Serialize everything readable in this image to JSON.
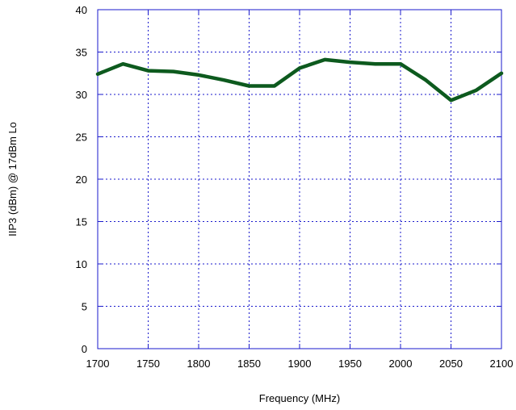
{
  "chart_data": {
    "type": "line",
    "xlabel": "Frequency (MHz)",
    "ylabel": "IIP3 (dBm) @ 17dBm Lo",
    "xlim": [
      1700,
      2100
    ],
    "ylim": [
      0,
      40
    ],
    "xticks": [
      1700,
      1750,
      1800,
      1850,
      1900,
      1950,
      2000,
      2050,
      2100
    ],
    "yticks": [
      0,
      5,
      10,
      15,
      20,
      25,
      30,
      35,
      40
    ],
    "grid": true,
    "series": [
      {
        "color": "#0d5a1e",
        "x": [
          1700,
          1725,
          1750,
          1775,
          1800,
          1825,
          1850,
          1875,
          1900,
          1925,
          1950,
          1975,
          2000,
          2025,
          2050,
          2075,
          2100
        ],
        "y": [
          32.4,
          33.6,
          32.8,
          32.7,
          32.3,
          31.7,
          31.0,
          31.0,
          33.1,
          34.1,
          33.8,
          33.6,
          33.6,
          31.7,
          29.3,
          30.5,
          32.5
        ]
      }
    ]
  }
}
